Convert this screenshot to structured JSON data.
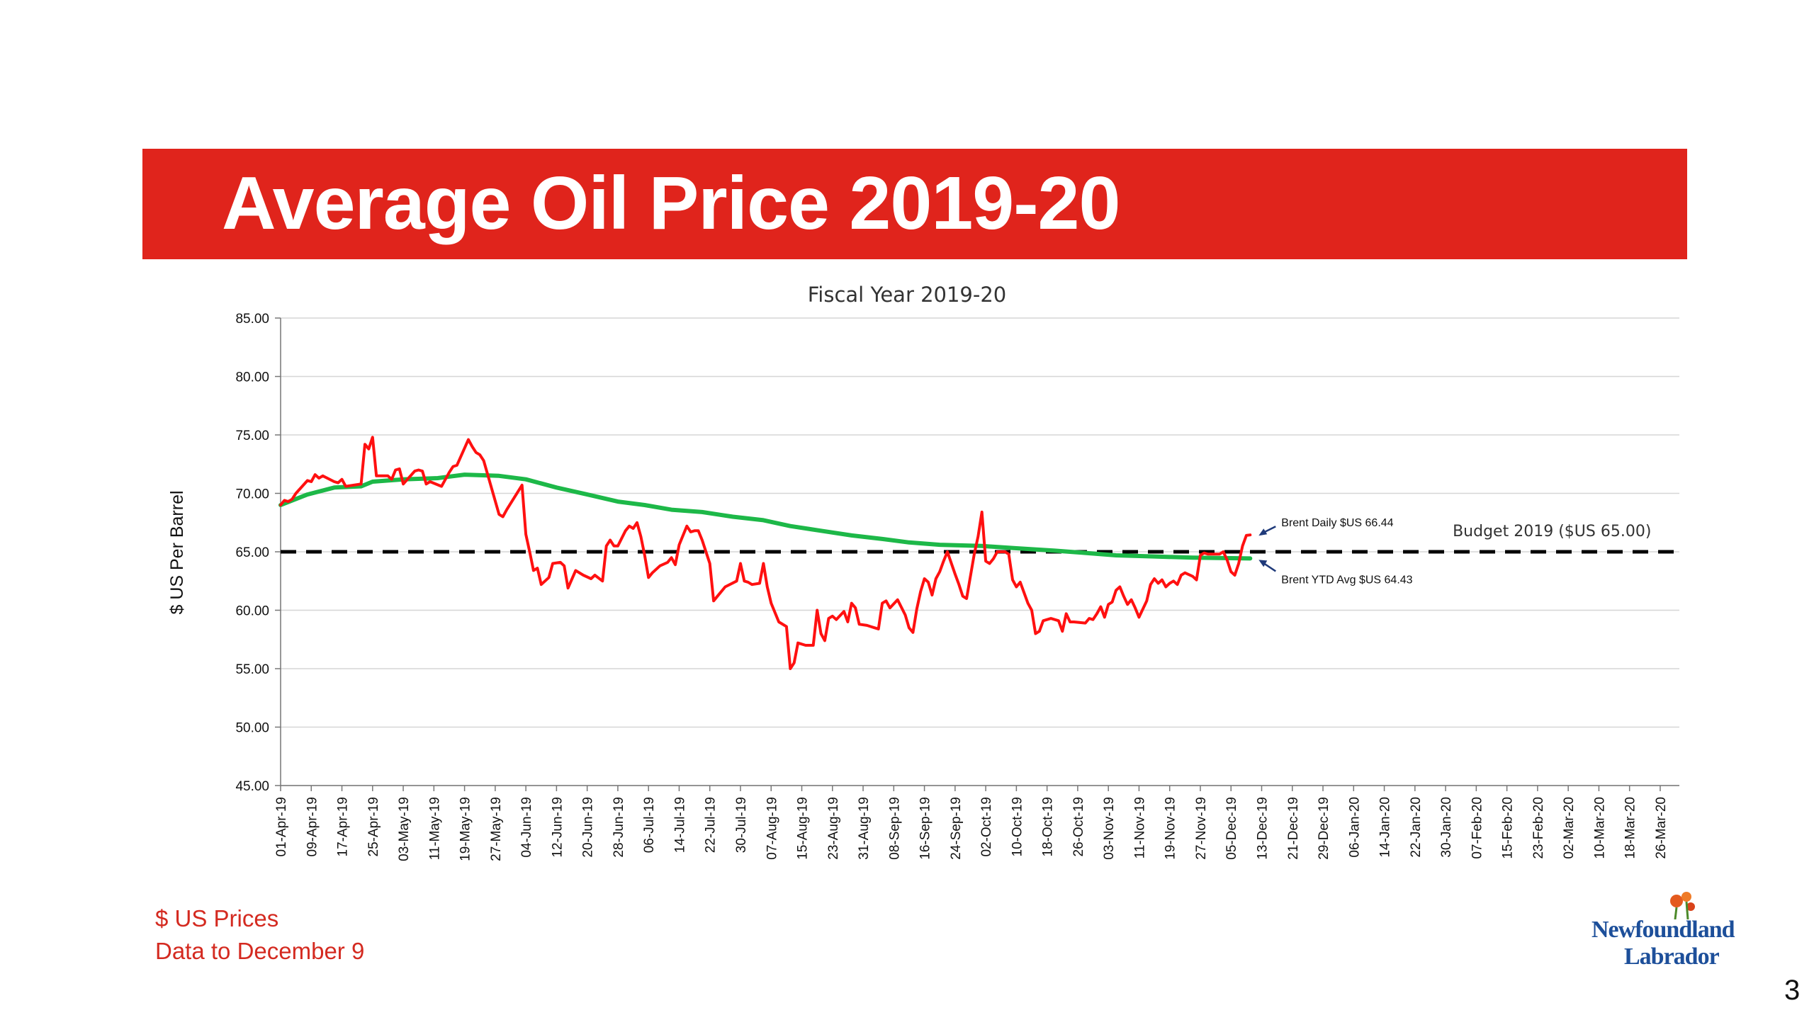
{
  "slide": {
    "title": "Average Oil Price 2019-20",
    "page_number": "3",
    "footnotes": [
      "$ US Prices",
      "Data to December 9"
    ],
    "logo": {
      "line1": "Newfoundland",
      "line2": "Labrador"
    }
  },
  "colors": {
    "banner": "#e0241c",
    "daily_line": "#ff1010",
    "ytd_line": "#1db848",
    "budget_line": "#000000",
    "footnote_text": "#d42a20",
    "logo_text": "#1d4f9a",
    "arrow": "#1f3a7a"
  },
  "chart_data": {
    "type": "line",
    "title": "Fiscal Year 2019-20",
    "ylabel": "$ US Per Barrel",
    "ylim": [
      45,
      85
    ],
    "yticks": [
      "85.00",
      "80.00",
      "75.00",
      "70.00",
      "65.00",
      "60.00",
      "55.00",
      "50.00",
      "45.00"
    ],
    "x_start": "2019-04-01",
    "x_end": "2020-03-31",
    "xticks": [
      "01-Apr-19",
      "09-Apr-19",
      "17-Apr-19",
      "25-Apr-19",
      "03-May-19",
      "11-May-19",
      "19-May-19",
      "27-May-19",
      "04-Jun-19",
      "12-Jun-19",
      "20-Jun-19",
      "28-Jun-19",
      "06-Jul-19",
      "14-Jul-19",
      "22-Jul-19",
      "30-Jul-19",
      "07-Aug-19",
      "15-Aug-19",
      "23-Aug-19",
      "31-Aug-19",
      "08-Sep-19",
      "16-Sep-19",
      "24-Sep-19",
      "02-Oct-19",
      "10-Oct-19",
      "18-Oct-19",
      "26-Oct-19",
      "03-Nov-19",
      "11-Nov-19",
      "19-Nov-19",
      "27-Nov-19",
      "05-Dec-19",
      "13-Dec-19",
      "21-Dec-19",
      "29-Dec-19",
      "06-Jan-20",
      "14-Jan-20",
      "22-Jan-20",
      "30-Jan-20",
      "07-Feb-20",
      "15-Feb-20",
      "23-Feb-20",
      "02-Mar-20",
      "10-Mar-20",
      "18-Mar-20",
      "26-Mar-20"
    ],
    "grid": true,
    "series": [
      {
        "name": "Brent Daily",
        "style": "solid",
        "points": [
          [
            "2019-04-01",
            69.0
          ],
          [
            "2019-04-02",
            69.4
          ],
          [
            "2019-04-03",
            69.3
          ],
          [
            "2019-04-04",
            69.5
          ],
          [
            "2019-04-05",
            70.0
          ],
          [
            "2019-04-08",
            71.1
          ],
          [
            "2019-04-09",
            71.0
          ],
          [
            "2019-04-10",
            71.6
          ],
          [
            "2019-04-11",
            71.3
          ],
          [
            "2019-04-12",
            71.5
          ],
          [
            "2019-04-15",
            71.0
          ],
          [
            "2019-04-16",
            70.9
          ],
          [
            "2019-04-17",
            71.2
          ],
          [
            "2019-04-18",
            70.6
          ],
          [
            "2019-04-22",
            70.8
          ],
          [
            "2019-04-23",
            74.2
          ],
          [
            "2019-04-24",
            73.8
          ],
          [
            "2019-04-25",
            74.8
          ],
          [
            "2019-04-26",
            71.5
          ],
          [
            "2019-04-29",
            71.5
          ],
          [
            "2019-04-30",
            71.2
          ],
          [
            "2019-05-01",
            72.0
          ],
          [
            "2019-05-02",
            72.1
          ],
          [
            "2019-05-03",
            70.8
          ],
          [
            "2019-05-06",
            71.9
          ],
          [
            "2019-05-07",
            72.0
          ],
          [
            "2019-05-08",
            71.9
          ],
          [
            "2019-05-09",
            70.8
          ],
          [
            "2019-05-10",
            71.0
          ],
          [
            "2019-05-13",
            70.6
          ],
          [
            "2019-05-14",
            71.2
          ],
          [
            "2019-05-15",
            71.8
          ],
          [
            "2019-05-16",
            72.3
          ],
          [
            "2019-05-17",
            72.4
          ],
          [
            "2019-05-20",
            74.6
          ],
          [
            "2019-05-21",
            74.0
          ],
          [
            "2019-05-22",
            73.5
          ],
          [
            "2019-05-23",
            73.3
          ],
          [
            "2019-05-24",
            72.8
          ],
          [
            "2019-05-28",
            68.2
          ],
          [
            "2019-05-29",
            68.0
          ],
          [
            "2019-05-30",
            68.6
          ],
          [
            "2019-06-03",
            70.7
          ],
          [
            "2019-06-04",
            66.5
          ],
          [
            "2019-06-05",
            65.0
          ],
          [
            "2019-06-06",
            63.4
          ],
          [
            "2019-06-07",
            63.6
          ],
          [
            "2019-06-08",
            62.2
          ],
          [
            "2019-06-10",
            62.8
          ],
          [
            "2019-06-11",
            64.0
          ],
          [
            "2019-06-13",
            64.1
          ],
          [
            "2019-06-14",
            63.8
          ],
          [
            "2019-06-15",
            61.9
          ],
          [
            "2019-06-17",
            63.4
          ],
          [
            "2019-06-19",
            63.0
          ],
          [
            "2019-06-21",
            62.7
          ],
          [
            "2019-06-22",
            63.0
          ],
          [
            "2019-06-24",
            62.5
          ],
          [
            "2019-06-25",
            65.5
          ],
          [
            "2019-06-26",
            66.0
          ],
          [
            "2019-06-27",
            65.5
          ],
          [
            "2019-06-28",
            65.5
          ],
          [
            "2019-06-30",
            66.8
          ],
          [
            "2019-07-01",
            67.2
          ],
          [
            "2019-07-02",
            67.0
          ],
          [
            "2019-07-03",
            67.5
          ],
          [
            "2019-07-04",
            66.3
          ],
          [
            "2019-07-05",
            64.7
          ],
          [
            "2019-07-06",
            62.8
          ],
          [
            "2019-07-07",
            63.2
          ],
          [
            "2019-07-09",
            63.8
          ],
          [
            "2019-07-11",
            64.1
          ],
          [
            "2019-07-12",
            64.5
          ],
          [
            "2019-07-13",
            63.9
          ],
          [
            "2019-07-14",
            65.6
          ],
          [
            "2019-07-16",
            67.2
          ],
          [
            "2019-07-17",
            66.7
          ],
          [
            "2019-07-18",
            66.8
          ],
          [
            "2019-07-19",
            66.8
          ],
          [
            "2019-07-20",
            66.0
          ],
          [
            "2019-07-22",
            64.0
          ],
          [
            "2019-07-23",
            60.8
          ],
          [
            "2019-07-24",
            61.2
          ],
          [
            "2019-07-26",
            62.0
          ],
          [
            "2019-07-29",
            62.5
          ],
          [
            "2019-07-30",
            64.0
          ],
          [
            "2019-07-31",
            62.5
          ],
          [
            "2019-08-01",
            62.4
          ],
          [
            "2019-08-02",
            62.2
          ],
          [
            "2019-08-04",
            62.3
          ],
          [
            "2019-08-05",
            64.0
          ],
          [
            "2019-08-06",
            62.0
          ],
          [
            "2019-08-07",
            60.6
          ],
          [
            "2019-08-09",
            59.0
          ],
          [
            "2019-08-11",
            58.6
          ],
          [
            "2019-08-12",
            55.0
          ],
          [
            "2019-08-13",
            55.5
          ],
          [
            "2019-08-14",
            57.2
          ],
          [
            "2019-08-16",
            57.0
          ],
          [
            "2019-08-18",
            57.0
          ],
          [
            "2019-08-19",
            60.0
          ],
          [
            "2019-08-20",
            58.0
          ],
          [
            "2019-08-21",
            57.4
          ],
          [
            "2019-08-22",
            59.3
          ],
          [
            "2019-08-23",
            59.5
          ],
          [
            "2019-08-24",
            59.2
          ],
          [
            "2019-08-26",
            59.9
          ],
          [
            "2019-08-27",
            59.0
          ],
          [
            "2019-08-28",
            60.6
          ],
          [
            "2019-08-29",
            60.2
          ],
          [
            "2019-08-30",
            58.8
          ],
          [
            "2019-09-01",
            58.7
          ],
          [
            "2019-09-02",
            58.6
          ],
          [
            "2019-09-03",
            58.5
          ],
          [
            "2019-09-04",
            58.4
          ],
          [
            "2019-09-05",
            60.6
          ],
          [
            "2019-09-06",
            60.8
          ],
          [
            "2019-09-07",
            60.2
          ],
          [
            "2019-09-09",
            60.9
          ],
          [
            "2019-09-11",
            59.6
          ],
          [
            "2019-09-12",
            58.5
          ],
          [
            "2019-09-13",
            58.1
          ],
          [
            "2019-09-14",
            60.1
          ],
          [
            "2019-09-15",
            61.6
          ],
          [
            "2019-09-16",
            62.7
          ],
          [
            "2019-09-17",
            62.4
          ],
          [
            "2019-09-18",
            61.3
          ],
          [
            "2019-09-19",
            62.7
          ],
          [
            "2019-09-20",
            63.3
          ],
          [
            "2019-09-21",
            64.2
          ],
          [
            "2019-09-22",
            65.0
          ],
          [
            "2019-09-24",
            63.1
          ],
          [
            "2019-09-25",
            62.2
          ],
          [
            "2019-09-26",
            61.2
          ],
          [
            "2019-09-27",
            61.0
          ],
          [
            "2019-09-29",
            64.8
          ],
          [
            "2019-09-30",
            66.3
          ],
          [
            "2019-10-01",
            68.4
          ],
          [
            "2019-10-02",
            64.2
          ],
          [
            "2019-10-03",
            64.0
          ],
          [
            "2019-10-04",
            64.4
          ],
          [
            "2019-10-05",
            65.0
          ],
          [
            "2019-10-07",
            65.0
          ],
          [
            "2019-10-08",
            64.8
          ],
          [
            "2019-10-09",
            62.6
          ],
          [
            "2019-10-10",
            62.0
          ],
          [
            "2019-10-11",
            62.4
          ],
          [
            "2019-10-13",
            60.6
          ],
          [
            "2019-10-14",
            60.0
          ],
          [
            "2019-10-15",
            58.0
          ],
          [
            "2019-10-16",
            58.2
          ],
          [
            "2019-10-17",
            59.1
          ],
          [
            "2019-10-19",
            59.3
          ],
          [
            "2019-10-21",
            59.1
          ],
          [
            "2019-10-22",
            58.2
          ],
          [
            "2019-10-23",
            59.7
          ],
          [
            "2019-10-24",
            59.0
          ],
          [
            "2019-10-25",
            59.0
          ],
          [
            "2019-10-28",
            58.9
          ],
          [
            "2019-10-29",
            59.3
          ],
          [
            "2019-10-30",
            59.2
          ],
          [
            "2019-10-31",
            59.7
          ],
          [
            "2019-11-01",
            60.3
          ],
          [
            "2019-11-02",
            59.4
          ],
          [
            "2019-11-03",
            60.5
          ],
          [
            "2019-11-04",
            60.7
          ],
          [
            "2019-11-05",
            61.7
          ],
          [
            "2019-11-06",
            62.0
          ],
          [
            "2019-11-07",
            61.2
          ],
          [
            "2019-11-08",
            60.5
          ],
          [
            "2019-11-09",
            60.9
          ],
          [
            "2019-11-10",
            60.2
          ],
          [
            "2019-11-11",
            59.4
          ],
          [
            "2019-11-13",
            60.8
          ],
          [
            "2019-11-14",
            62.2
          ],
          [
            "2019-11-15",
            62.7
          ],
          [
            "2019-11-16",
            62.3
          ],
          [
            "2019-11-17",
            62.6
          ],
          [
            "2019-11-18",
            62.0
          ],
          [
            "2019-11-19",
            62.3
          ],
          [
            "2019-11-20",
            62.5
          ],
          [
            "2019-11-21",
            62.2
          ],
          [
            "2019-11-22",
            63.0
          ],
          [
            "2019-11-23",
            63.2
          ],
          [
            "2019-11-25",
            62.9
          ],
          [
            "2019-11-26",
            62.6
          ],
          [
            "2019-11-27",
            64.7
          ],
          [
            "2019-11-28",
            64.9
          ],
          [
            "2019-11-29",
            64.8
          ],
          [
            "2019-12-02",
            64.8
          ],
          [
            "2019-12-03",
            65.0
          ],
          [
            "2019-12-04",
            64.3
          ],
          [
            "2019-12-05",
            63.3
          ],
          [
            "2019-12-06",
            63.0
          ],
          [
            "2019-12-07",
            64.0
          ],
          [
            "2019-12-08",
            65.5
          ],
          [
            "2019-12-09",
            66.4
          ],
          [
            "2019-12-10",
            66.44
          ]
        ]
      },
      {
        "name": "Brent YTD Avg",
        "style": "solid",
        "points": [
          [
            "2019-04-01",
            69.0
          ],
          [
            "2019-04-08",
            69.9
          ],
          [
            "2019-04-15",
            70.5
          ],
          [
            "2019-04-22",
            70.6
          ],
          [
            "2019-04-25",
            71.0
          ],
          [
            "2019-05-03",
            71.2
          ],
          [
            "2019-05-12",
            71.3
          ],
          [
            "2019-05-19",
            71.6
          ],
          [
            "2019-05-28",
            71.5
          ],
          [
            "2019-06-04",
            71.2
          ],
          [
            "2019-06-12",
            70.5
          ],
          [
            "2019-06-20",
            69.9
          ],
          [
            "2019-06-28",
            69.3
          ],
          [
            "2019-07-05",
            69.0
          ],
          [
            "2019-07-12",
            68.6
          ],
          [
            "2019-07-20",
            68.4
          ],
          [
            "2019-07-28",
            68.0
          ],
          [
            "2019-08-05",
            67.7
          ],
          [
            "2019-08-12",
            67.2
          ],
          [
            "2019-08-20",
            66.8
          ],
          [
            "2019-08-28",
            66.4
          ],
          [
            "2019-09-05",
            66.1
          ],
          [
            "2019-09-12",
            65.8
          ],
          [
            "2019-09-20",
            65.6
          ],
          [
            "2019-10-01",
            65.5
          ],
          [
            "2019-10-10",
            65.3
          ],
          [
            "2019-10-20",
            65.1
          ],
          [
            "2019-10-28",
            64.9
          ],
          [
            "2019-11-05",
            64.7
          ],
          [
            "2019-11-15",
            64.6
          ],
          [
            "2019-11-25",
            64.5
          ],
          [
            "2019-12-10",
            64.43
          ]
        ]
      },
      {
        "name": "Budget 2019",
        "style": "dashed",
        "points": [
          [
            "2019-04-01",
            65.0
          ],
          [
            "2020-03-31",
            65.0
          ]
        ]
      }
    ],
    "annotations": [
      {
        "text": "Brent Daily $US 66.44",
        "at": [
          "2019-12-10",
          66.44
        ]
      },
      {
        "text": "Brent YTD Avg $US 64.43",
        "at": [
          "2019-12-10",
          64.43
        ]
      },
      {
        "text": "Budget 2019 ($US 65.00)",
        "at": [
          "2020-01-30",
          65.0
        ]
      }
    ]
  }
}
